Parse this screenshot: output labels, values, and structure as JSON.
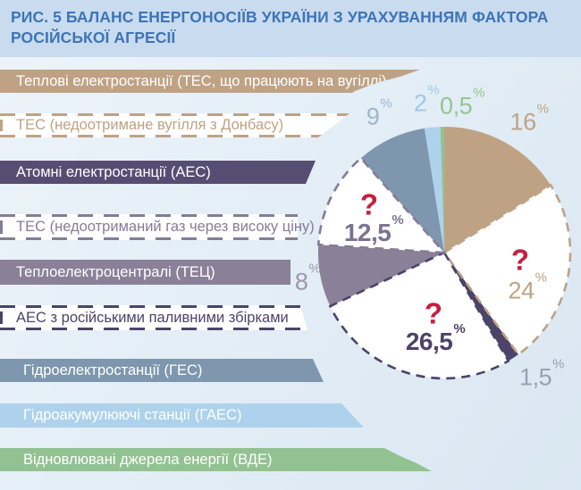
{
  "title": {
    "lines": [
      "РИС. 5 БАЛАНС ЕНЕРГОНОСІЇВ УКРАЇНИ З УРАХУВАННЯМ ФАКТОРА",
      "РОСІЙСЬКОЇ АГРЕСІЇ"
    ]
  },
  "legend": {
    "items": [
      {
        "label": "Теплові електростанції (ТЕС, що працюють на вугіллі)",
        "style": "solid",
        "color": "tan"
      },
      {
        "label": "ТЕС (недоотримане вугілля з Донбасу)",
        "style": "dashed",
        "color": "tan"
      },
      {
        "label": "Атомні електростанції (АЕС)",
        "style": "solid",
        "color": "navy"
      },
      {
        "label": "ТЕС (недоотриманий газ через високу ціну)",
        "style": "dashed",
        "color": "slate"
      },
      {
        "label": "Теплоелектроцентралі (ТЕЦ)",
        "style": "solid",
        "color": "plum"
      },
      {
        "label": "АЕС з російськими паливними збірками",
        "style": "dashed",
        "color": "navy_dark"
      },
      {
        "label": "Гідроелектростанції (ГЕС)",
        "style": "solid",
        "color": "blue"
      },
      {
        "label": "Гідроакумулюючі станції (ГАЕС)",
        "style": "solid",
        "color": "light_blue"
      },
      {
        "label": "Відновлювані джерела енергії (ВДЕ)",
        "style": "solid",
        "color": "green"
      }
    ]
  },
  "chart_data": {
    "type": "pie",
    "title": "Баланс енергоносіїв України з урахуванням фактора російської агресії",
    "start_angle_deg": 0,
    "direction": "clockwise",
    "percent_sign": "%",
    "question_mark": "?",
    "slices": [
      {
        "label": "Теплові електростанції (ТЕС, що працюють на вугіллі)",
        "value": 16,
        "display": "16",
        "style": "solid",
        "fill": "tan"
      },
      {
        "label": "ТЕС (недоотримане вугілля з Донбасу)",
        "value": 24,
        "display": "24",
        "style": "dashed",
        "fill": "white",
        "border": "tan",
        "uncertain": true
      },
      {
        "label": "Атомні електростанції (АЕС)",
        "value": 1.5,
        "display": "1,5",
        "style": "solid",
        "fill": "navy_dark"
      },
      {
        "label": "АЕС з російськими паливними збірками",
        "value": 26.5,
        "display": "26,5",
        "style": "dashed",
        "fill": "white",
        "border": "navy_dark",
        "uncertain": true
      },
      {
        "label": "Теплоелектроцентралі (ТЕЦ)",
        "value": 8,
        "display": "8",
        "style": "solid",
        "fill": "plum"
      },
      {
        "label": "ТЕС (недоотриманий газ через високу ціну)",
        "value": 12.5,
        "display": "12,5",
        "style": "dashed",
        "fill": "white",
        "border": "slate",
        "uncertain": true
      },
      {
        "label": "Гідроелектростанції (ГЕС)",
        "value": 9,
        "display": "9",
        "style": "solid",
        "fill": "blue"
      },
      {
        "label": "Гідроакумулюючі станції (ГАЕС)",
        "value": 2,
        "display": "2",
        "style": "solid",
        "fill": "light_blue"
      },
      {
        "label": "Відновлювані джерела енергії (ВДЕ)",
        "value": 0.5,
        "display": "0,5",
        "style": "solid",
        "fill": "green"
      }
    ]
  },
  "colors": {
    "bg_light": "#edf4fa",
    "bg_dark": "#d9e7f2",
    "title_bg": "#c9dbee",
    "title_text": "#3e74b8",
    "tan": "#bfa284",
    "navy": "#564e72",
    "navy_dark": "#4c4468",
    "plum": "#8a8199",
    "slate": "#857c97",
    "blue": "#7e97ae",
    "light_blue": "#aed2ec",
    "green": "#93c292",
    "red": "#c51f3f",
    "white": "#ffffff",
    "label_blue": "#9db7cd",
    "label_lightblue": "#9ecbe9",
    "label_green": "#93c691",
    "label_gray": "#98a1af",
    "label_plum": "#9d97aa",
    "label_slate": "#7b7290"
  }
}
